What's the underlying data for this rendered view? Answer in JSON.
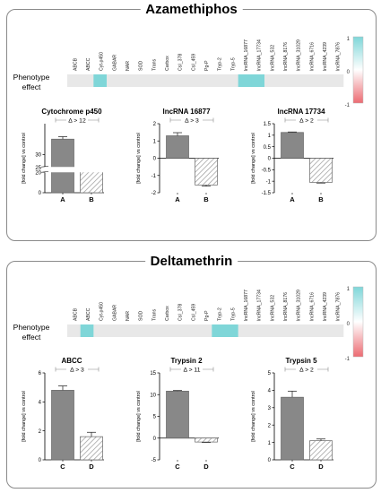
{
  "headers": [
    "ABCB",
    "ABCC",
    "Cyt-p450",
    "GABAR",
    "NAR",
    "SOD",
    "Trans",
    "Carbox",
    "CsI_378",
    "CsI_459",
    "Pg-P",
    "Tryp-2",
    "Tryp-5",
    "lncRNA_16877",
    "lncRNA_17734",
    "lncRNA_532",
    "lncRNA_8176",
    "lncRNA_31029",
    "lncRNA_6716",
    "lncRNA_4239",
    "lncRNA_7876"
  ],
  "legend": {
    "ticks": [
      "1",
      "0",
      "-1"
    ],
    "colors": {
      "high": "#7fd6d8",
      "mid": "#ffffff",
      "low": "#ec6b72"
    }
  },
  "colors": {
    "bar_solid": "#888888",
    "strip_base": "#e8e8e8",
    "strip_highlight": "#7fd6d8",
    "frame": "#8a8a8a"
  },
  "chart_data": [
    {
      "type": "heatmap",
      "title": "Azamethiphos",
      "row_label": "Phenotype effect",
      "columns_ref": "headers",
      "values": [
        0,
        0,
        1,
        0,
        0,
        0,
        0,
        0,
        0,
        0,
        0,
        0,
        0,
        1,
        1,
        0,
        0,
        0,
        0,
        0,
        0
      ],
      "scale": [
        -1,
        1
      ]
    },
    {
      "type": "bar",
      "title": "Cytochrome p450",
      "ylabel": "[fold change] vs control",
      "categories": [
        "A",
        "B"
      ],
      "values": [
        32.5,
        20.5
      ],
      "errors": [
        0.4,
        0.5
      ],
      "patterns": [
        "solid",
        "hatched"
      ],
      "ylim": [
        0,
        35
      ],
      "y_break": [
        20,
        28
      ],
      "y_ticks": [
        0,
        20,
        25,
        30
      ],
      "annotation": "Δ > 12"
    },
    {
      "type": "bar",
      "title": "lncRNA 16877",
      "ylabel": "[fold change] vs control",
      "categories": [
        "A",
        "B"
      ],
      "values": [
        1.3,
        -1.55
      ],
      "errors": [
        0.18,
        0.07
      ],
      "patterns": [
        "solid",
        "hatched"
      ],
      "ylim": [
        -2.0,
        2.0
      ],
      "y_ticks": [
        -2,
        -1,
        0,
        1,
        2
      ],
      "annotation": "Δ > 3"
    },
    {
      "type": "bar",
      "title": "lncRNA 17734",
      "ylabel": "[fold change] vs control",
      "categories": [
        "A",
        "B"
      ],
      "values": [
        1.12,
        -1.05
      ],
      "errors": [
        0.02,
        0.03
      ],
      "patterns": [
        "solid",
        "hatched"
      ],
      "ylim": [
        -1.5,
        1.5
      ],
      "y_ticks": [
        -1.5,
        -1.0,
        -0.5,
        0.0,
        0.5,
        1.0,
        1.5
      ],
      "annotation": "Δ > 2"
    },
    {
      "type": "heatmap",
      "title": "Deltamethrin",
      "row_label": "Phenotype effect",
      "columns_ref": "headers",
      "values": [
        0,
        1,
        0,
        0,
        0,
        0,
        0,
        0,
        0,
        0,
        0,
        1,
        1,
        0,
        0,
        0,
        0,
        0,
        0,
        0,
        0
      ],
      "scale": [
        -1,
        1
      ]
    },
    {
      "type": "bar",
      "title": "ABCC",
      "ylabel": "[fold change] vs control",
      "categories": [
        "C",
        "D"
      ],
      "values": [
        4.8,
        1.6
      ],
      "errors": [
        0.3,
        0.3
      ],
      "patterns": [
        "solid",
        "hatched"
      ],
      "ylim": [
        0,
        6
      ],
      "y_ticks": [
        0,
        2,
        4,
        6
      ],
      "annotation": "Δ > 3"
    },
    {
      "type": "bar",
      "title": "Trypsin 2",
      "ylabel": "[fold change] vs control",
      "categories": [
        "C",
        "D"
      ],
      "values": [
        10.8,
        -0.9
      ],
      "errors": [
        0.15,
        0.1
      ],
      "patterns": [
        "solid",
        "hatched"
      ],
      "ylim": [
        -5,
        15
      ],
      "y_ticks": [
        -5,
        0,
        5,
        10,
        15
      ],
      "annotation": "Δ > 11"
    },
    {
      "type": "bar",
      "title": "Trypsin 5",
      "ylabel": "[fold change] vs control",
      "categories": [
        "C",
        "D"
      ],
      "values": [
        3.6,
        1.1
      ],
      "errors": [
        0.35,
        0.1
      ],
      "patterns": [
        "solid",
        "hatched"
      ],
      "ylim": [
        0,
        5
      ],
      "y_ticks": [
        0,
        1,
        2,
        3,
        4,
        5
      ],
      "annotation": "Δ > 2"
    }
  ]
}
